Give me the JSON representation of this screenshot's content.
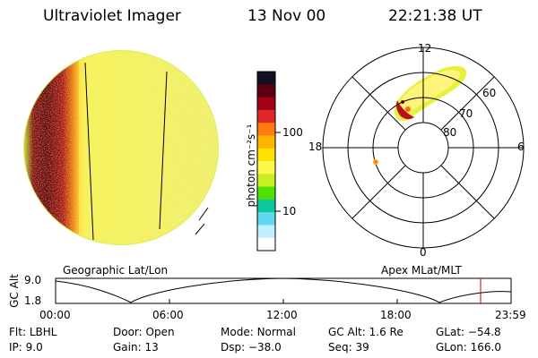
{
  "header": {
    "title": "Ultraviolet Imager",
    "date": "13 Nov 00",
    "time": "22:21:38 UT"
  },
  "colorbar": {
    "label": "photon cm⁻²s⁻¹",
    "ticks": [
      {
        "label": "100",
        "value": 100
      },
      {
        "label": "10",
        "value": 10
      }
    ],
    "colors": [
      "#101020",
      "#5a0010",
      "#a00018",
      "#e02828",
      "#ff7a10",
      "#ffb400",
      "#ffe000",
      "#fff84a",
      "#c8f020",
      "#50e000",
      "#10c8a0",
      "#60d8f0",
      "#c0f0ff",
      "#ffffff"
    ]
  },
  "globe": {
    "label": "Geographic Lat/Lon"
  },
  "polar": {
    "label": "Apex MLat/MLT",
    "mlt_labels": {
      "top": "12",
      "left": "18",
      "right": "6",
      "bottom": "0"
    },
    "lat_labels": [
      "60",
      "70",
      "80"
    ]
  },
  "timeline": {
    "ylabel": "GC Alt",
    "y_ticks": [
      "9.0",
      "1.8"
    ],
    "x_ticks": [
      "00:00",
      "06:00",
      "12:00",
      "18:00",
      "23:59"
    ]
  },
  "info": {
    "filter": {
      "label": "Flt:",
      "value": "LBHL"
    },
    "ip": {
      "label": "IP:",
      "value": "9.0"
    },
    "door": {
      "label": "Door:",
      "value": "Open"
    },
    "gain": {
      "label": "Gain:",
      "value": "13"
    },
    "mode": {
      "label": "Mode:",
      "value": "Normal"
    },
    "dsp": {
      "label": "Dsp:",
      "value": "−38.0"
    },
    "gcalt": {
      "label": "GC Alt:",
      "value": "1.6 Re"
    },
    "seq": {
      "label": "Seq:",
      "value": "39"
    },
    "glat": {
      "label": "GLat:",
      "value": "−54.8"
    },
    "glon": {
      "label": "GLon:",
      "value": "166.0"
    }
  }
}
